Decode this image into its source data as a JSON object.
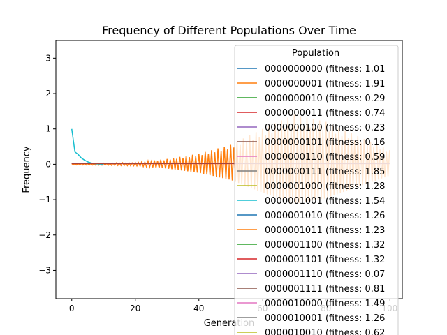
{
  "chart_data": {
    "type": "line",
    "title": "Frequency of Different Populations Over Time",
    "xlabel": "Generation",
    "ylabel": "Frequency",
    "xlim": [
      -5,
      104
    ],
    "ylim": [
      -3.8,
      3.5
    ],
    "xticks": [
      "0",
      "20",
      "40",
      "60",
      "80",
      "100"
    ],
    "yticks": [
      "−3",
      "−2",
      "−1",
      "0",
      "1",
      "2",
      "3"
    ],
    "legend": {
      "title": "Population",
      "placement": "top-right",
      "entries": [
        {
          "label": "0000000000 (fitness: 1.01",
          "color": "#1f77b4"
        },
        {
          "label": "0000000001 (fitness: 1.91",
          "color": "#ff7f0e"
        },
        {
          "label": "0000000010 (fitness: 0.29",
          "color": "#2ca02c"
        },
        {
          "label": "0000000011 (fitness: 0.74",
          "color": "#d62728"
        },
        {
          "label": "0000000100 (fitness: 0.23",
          "color": "#9467bd"
        },
        {
          "label": "0000000101 (fitness: 0.16",
          "color": "#8c564b"
        },
        {
          "label": "0000000110 (fitness: 0.59",
          "color": "#e377c2"
        },
        {
          "label": "0000000111 (fitness: 1.85",
          "color": "#7f7f7f"
        },
        {
          "label": "0000001000 (fitness: 1.28",
          "color": "#bcbd22"
        },
        {
          "label": "0000001001 (fitness: 1.54",
          "color": "#17becf"
        },
        {
          "label": "0000001010 (fitness: 1.26",
          "color": "#1f77b4"
        },
        {
          "label": "0000001011 (fitness: 1.23",
          "color": "#ff7f0e"
        },
        {
          "label": "0000001100 (fitness: 1.32",
          "color": "#2ca02c"
        },
        {
          "label": "0000001101 (fitness: 1.32",
          "color": "#d62728"
        },
        {
          "label": "0000001110 (fitness: 0.07",
          "color": "#9467bd"
        },
        {
          "label": "0000001111 (fitness: 0.81",
          "color": "#8c564b"
        },
        {
          "label": "0000010000 (fitness: 1.49",
          "color": "#e377c2"
        },
        {
          "label": "0000010001 (fitness: 1.26",
          "color": "#7f7f7f"
        },
        {
          "label": "0000010010 (fitness: 0.62",
          "color": "#bcbd22"
        }
      ]
    },
    "series": [
      {
        "color": "#ff7f0e",
        "x_range": [
          0,
          100
        ],
        "pattern": "alternating oscillation around 0 with growing amplitude",
        "envelope": [
          [
            0,
            0.02
          ],
          [
            10,
            0.03
          ],
          [
            20,
            0.05
          ],
          [
            30,
            0.15
          ],
          [
            40,
            0.3
          ],
          [
            50,
            0.55
          ],
          [
            60,
            1.0
          ],
          [
            70,
            1.4
          ],
          [
            80,
            1.2
          ],
          [
            90,
            0.8
          ],
          [
            100,
            0.4
          ]
        ]
      },
      {
        "color": "#17becf",
        "x_range": [
          0,
          10
        ],
        "points": [
          [
            0,
            1.0
          ],
          [
            1,
            0.35
          ],
          [
            2,
            0.28
          ],
          [
            3,
            0.18
          ],
          [
            4,
            0.12
          ],
          [
            5,
            0.07
          ],
          [
            6,
            0.04
          ],
          [
            7,
            0.02
          ],
          [
            8,
            0.01
          ],
          [
            9,
            0.005
          ],
          [
            10,
            0.0
          ]
        ]
      },
      {
        "color": "#d62728",
        "x_range": [
          0,
          100
        ],
        "pattern": "near zero",
        "envelope": [
          [
            0,
            0.02
          ],
          [
            50,
            0.02
          ],
          [
            100,
            0.02
          ]
        ]
      },
      {
        "color": "#8c564b",
        "x_range": [
          0,
          100
        ],
        "pattern": "near zero",
        "envelope": [
          [
            0,
            0.03
          ],
          [
            50,
            0.03
          ],
          [
            100,
            0.03
          ]
        ]
      }
    ]
  }
}
